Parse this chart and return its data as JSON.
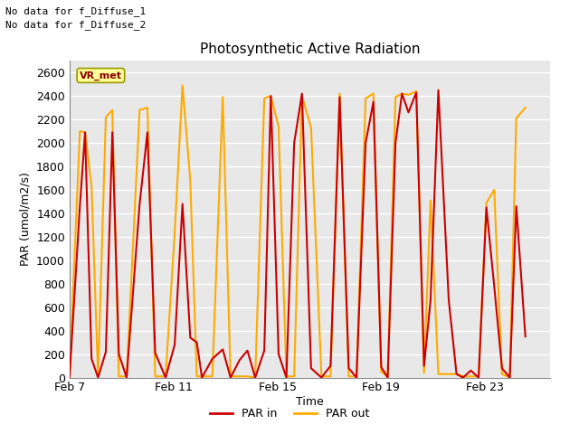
{
  "title": "Photosynthetic Active Radiation",
  "xlabel": "Time",
  "ylabel": "PAR (umol/m2/s)",
  "ylim": [
    0,
    2700
  ],
  "yticks": [
    0,
    200,
    400,
    600,
    800,
    1000,
    1200,
    1400,
    1600,
    1800,
    2000,
    2200,
    2400,
    2600
  ],
  "annotation_lines": [
    "No data for f_Diffuse_1",
    "No data for f_Diffuse_2"
  ],
  "vr_met_label": "VR_met",
  "legend_entries": [
    "PAR in",
    "PAR out"
  ],
  "par_in_color": "#cc0000",
  "par_out_color": "#ffaa00",
  "background_color": "#e0e0e0",
  "plot_bg_color": "#e8e8e8",
  "xtick_labels": [
    "Feb 7",
    "Feb 11",
    "Feb 15",
    "Feb 19",
    "Feb 23"
  ],
  "xtick_positions": [
    7,
    11,
    15,
    19,
    23
  ],
  "xlim": [
    7,
    25.5
  ],
  "par_in_x": [
    7.0,
    7.4,
    7.6,
    7.85,
    8.1,
    8.4,
    8.65,
    8.9,
    9.2,
    9.7,
    10.0,
    10.3,
    10.7,
    11.05,
    11.35,
    11.65,
    11.9,
    12.1,
    12.5,
    12.9,
    13.2,
    13.55,
    13.85,
    14.15,
    14.5,
    14.75,
    15.05,
    15.35,
    15.65,
    15.95,
    16.3,
    16.7,
    17.05,
    17.4,
    17.75,
    18.05,
    18.4,
    18.7,
    19.0,
    19.25,
    19.55,
    19.8,
    20.05,
    20.35,
    20.65,
    20.9,
    21.2,
    21.6,
    21.9,
    22.15,
    22.45,
    22.75,
    23.05,
    23.35,
    23.65,
    23.95,
    24.2,
    24.55
  ],
  "par_in_y": [
    0,
    1460,
    2090,
    160,
    0,
    220,
    2090,
    200,
    0,
    1480,
    2090,
    210,
    0,
    280,
    1480,
    340,
    300,
    0,
    160,
    240,
    0,
    150,
    230,
    0,
    230,
    2400,
    200,
    0,
    2000,
    2420,
    80,
    0,
    100,
    2390,
    80,
    0,
    2000,
    2350,
    90,
    0,
    2000,
    2420,
    2260,
    2430,
    100,
    660,
    2450,
    660,
    30,
    0,
    60,
    0,
    1450,
    780,
    80,
    0,
    1460,
    350
  ],
  "par_out_x": [
    7.0,
    7.4,
    7.6,
    7.85,
    8.1,
    8.4,
    8.65,
    8.9,
    9.2,
    9.7,
    10.0,
    10.3,
    10.7,
    11.05,
    11.35,
    11.65,
    11.9,
    12.1,
    12.5,
    12.9,
    13.2,
    13.55,
    13.85,
    14.15,
    14.5,
    14.75,
    15.05,
    15.35,
    15.65,
    15.95,
    16.3,
    16.7,
    17.05,
    17.4,
    17.75,
    18.05,
    18.4,
    18.7,
    19.0,
    19.25,
    19.55,
    19.8,
    20.05,
    20.35,
    20.65,
    20.9,
    21.2,
    21.6,
    21.9,
    22.15,
    22.45,
    22.75,
    23.05,
    23.35,
    23.65,
    23.95,
    24.2,
    24.55
  ],
  "par_out_y": [
    0,
    2100,
    2090,
    1630,
    10,
    2220,
    2280,
    10,
    10,
    2280,
    2300,
    10,
    10,
    1230,
    2490,
    1680,
    10,
    10,
    10,
    2390,
    10,
    10,
    10,
    0,
    2380,
    2400,
    2140,
    10,
    10,
    2400,
    2130,
    10,
    10,
    2420,
    10,
    10,
    2380,
    2420,
    50,
    10,
    2390,
    2420,
    2410,
    2440,
    40,
    1510,
    30,
    30,
    30,
    10,
    10,
    10,
    1490,
    1600,
    30,
    0,
    2210,
    2300
  ]
}
